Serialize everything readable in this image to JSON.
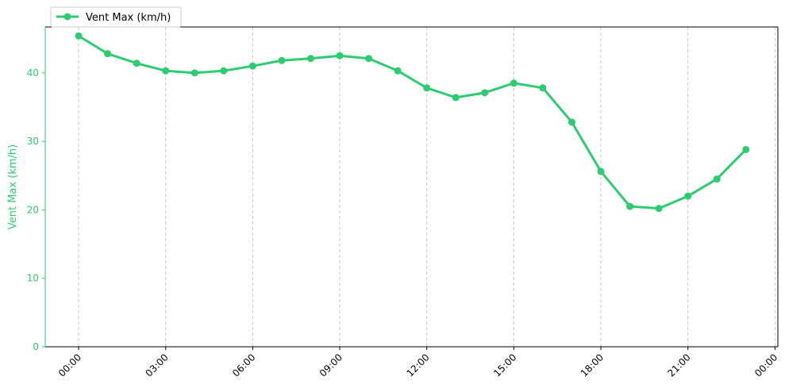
{
  "chart_data": {
    "type": "line",
    "title": "",
    "xlabel": "",
    "ylabel": "Vent Max (km/h)",
    "x": [
      "00:00",
      "01:00",
      "02:00",
      "03:00",
      "04:00",
      "05:00",
      "06:00",
      "07:00",
      "08:00",
      "09:00",
      "10:00",
      "11:00",
      "12:00",
      "13:00",
      "14:00",
      "15:00",
      "16:00",
      "17:00",
      "18:00",
      "19:00",
      "20:00",
      "21:00",
      "22:00",
      "23:00"
    ],
    "x_ticks": [
      "00:00",
      "03:00",
      "06:00",
      "09:00",
      "12:00",
      "15:00",
      "18:00",
      "21:00",
      "00:00"
    ],
    "y_ticks": [
      0,
      10,
      20,
      30,
      40
    ],
    "ylim": [
      0,
      46.7
    ],
    "xlim_hours": [
      -1.15,
      24.1
    ],
    "grid": "x-dashed",
    "legend_position": "top-left",
    "series": [
      {
        "name": "Vent Max (km/h)",
        "color": "#2ecc71",
        "values": [
          45.4,
          42.8,
          41.4,
          40.3,
          40.0,
          40.3,
          41.0,
          41.8,
          42.1,
          42.5,
          42.1,
          40.3,
          37.8,
          36.4,
          37.1,
          38.5,
          37.8,
          32.8,
          25.6,
          20.5,
          20.2,
          22.0,
          24.5,
          28.8
        ]
      }
    ],
    "axis_color": "#2ecc71"
  }
}
